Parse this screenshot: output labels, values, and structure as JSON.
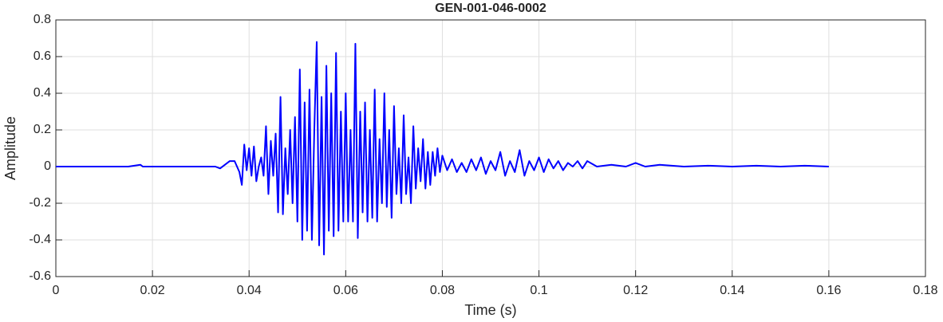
{
  "chart_data": {
    "type": "line",
    "title": "GEN-001-046-0002",
    "xlabel": "Time (s)",
    "ylabel": "Amplitude",
    "xlim": [
      0,
      0.18
    ],
    "xticks": [
      0,
      0.02,
      0.04,
      0.06,
      0.08,
      0.1,
      0.12,
      0.14,
      0.16,
      0.18
    ],
    "ylim": [
      -0.6,
      0.8
    ],
    "yticks": [
      -0.6,
      -0.4,
      -0.2,
      0,
      0.2,
      0.4,
      0.6,
      0.8
    ],
    "grid": true,
    "x": [
      0,
      0.005,
      0.01,
      0.015,
      0.0175,
      0.018,
      0.02,
      0.025,
      0.03,
      0.033,
      0.034,
      0.035,
      0.036,
      0.037,
      0.038,
      0.0385,
      0.039,
      0.0395,
      0.04,
      0.0405,
      0.041,
      0.0415,
      0.042,
      0.0425,
      0.043,
      0.0435,
      0.044,
      0.0445,
      0.045,
      0.0455,
      0.046,
      0.0465,
      0.047,
      0.0475,
      0.048,
      0.0485,
      0.049,
      0.0495,
      0.05,
      0.0505,
      0.051,
      0.0515,
      0.052,
      0.0525,
      0.053,
      0.0535,
      0.054,
      0.0545,
      0.055,
      0.0555,
      0.056,
      0.0565,
      0.057,
      0.0575,
      0.058,
      0.0585,
      0.059,
      0.0595,
      0.06,
      0.0605,
      0.061,
      0.0615,
      0.062,
      0.0625,
      0.063,
      0.0635,
      0.064,
      0.0645,
      0.065,
      0.0655,
      0.066,
      0.0665,
      0.067,
      0.0675,
      0.068,
      0.0685,
      0.069,
      0.0695,
      0.07,
      0.0705,
      0.071,
      0.0715,
      0.072,
      0.0725,
      0.073,
      0.0735,
      0.074,
      0.0745,
      0.075,
      0.0755,
      0.076,
      0.0765,
      0.077,
      0.0775,
      0.078,
      0.0785,
      0.079,
      0.0795,
      0.08,
      0.081,
      0.082,
      0.083,
      0.084,
      0.085,
      0.086,
      0.087,
      0.088,
      0.089,
      0.09,
      0.091,
      0.092,
      0.093,
      0.094,
      0.095,
      0.096,
      0.097,
      0.098,
      0.099,
      0.1,
      0.101,
      0.102,
      0.103,
      0.104,
      0.105,
      0.106,
      0.107,
      0.108,
      0.109,
      0.11,
      0.112,
      0.115,
      0.118,
      0.12,
      0.122,
      0.125,
      0.13,
      0.135,
      0.14,
      0.145,
      0.15,
      0.155,
      0.16
    ],
    "series": [
      {
        "color": "#0000ff",
        "values": [
          0,
          0,
          0,
          0,
          0.01,
          0,
          0,
          0,
          0,
          0,
          -0.01,
          0.01,
          0.03,
          0.03,
          -0.03,
          -0.1,
          0.12,
          -0.02,
          0.1,
          -0.05,
          0.11,
          -0.08,
          0,
          0.05,
          -0.05,
          0.22,
          -0.15,
          0.14,
          -0.05,
          0.18,
          -0.25,
          0.38,
          -0.26,
          0.1,
          -0.15,
          0.2,
          -0.2,
          0.27,
          -0.3,
          0.53,
          -0.4,
          0.35,
          -0.35,
          0.42,
          -0.4,
          0.2,
          0.68,
          -0.43,
          0.38,
          -0.48,
          0.55,
          -0.35,
          0.4,
          -0.38,
          0.62,
          -0.35,
          0.3,
          -0.3,
          0.4,
          -0.3,
          0.2,
          -0.3,
          0.67,
          -0.39,
          0.3,
          -0.25,
          0.35,
          -0.3,
          0.2,
          -0.28,
          0.42,
          -0.3,
          0.15,
          -0.2,
          0.4,
          -0.22,
          0.2,
          -0.28,
          0.33,
          -0.15,
          0.1,
          -0.2,
          0.28,
          -0.15,
          0.05,
          -0.2,
          0.22,
          -0.12,
          0.1,
          -0.08,
          0.15,
          -0.12,
          0.08,
          -0.1,
          0.08,
          -0.05,
          0.1,
          -0.03,
          0.06,
          -0.02,
          0.04,
          -0.03,
          0.02,
          -0.03,
          0.04,
          -0.02,
          0.05,
          -0.04,
          0.03,
          -0.02,
          0.08,
          -0.05,
          0.03,
          -0.03,
          0.09,
          -0.05,
          0.03,
          -0.02,
          0.05,
          -0.03,
          0.04,
          -0.01,
          0.03,
          -0.02,
          0.02,
          0,
          0.03,
          -0.01,
          0.03,
          0,
          0.01,
          0,
          0.02,
          0,
          0.01,
          0,
          0.005,
          0,
          0.005,
          0,
          0.005,
          0
        ]
      }
    ]
  }
}
